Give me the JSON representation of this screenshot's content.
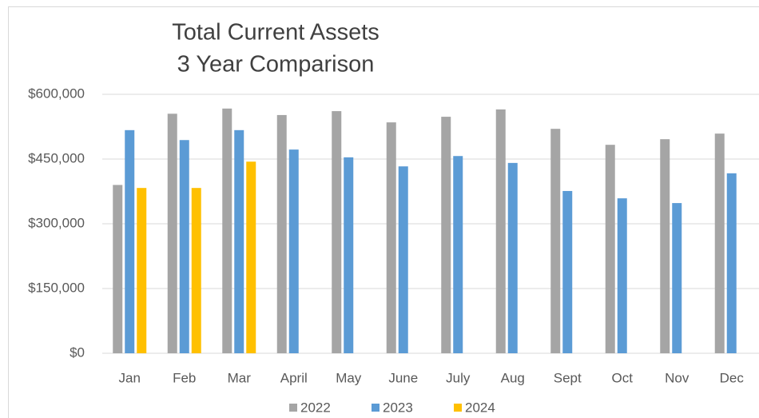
{
  "chart_data": {
    "type": "bar",
    "title": "Total Current Assets",
    "subtitle": "3 Year Comparison",
    "categories": [
      "Jan",
      "Feb",
      "Mar",
      "April",
      "May",
      "June",
      "July",
      "Aug",
      "Sept",
      "Oct",
      "Nov",
      "Dec"
    ],
    "series": [
      {
        "name": "2022",
        "color": "#a5a5a5",
        "values": [
          390000,
          555000,
          567000,
          552000,
          561000,
          535000,
          548000,
          565000,
          520000,
          483000,
          496000,
          509000
        ]
      },
      {
        "name": "2023",
        "color": "#5b9bd5",
        "values": [
          517000,
          494000,
          517000,
          472000,
          454000,
          433000,
          457000,
          441000,
          376000,
          359000,
          348000,
          417000
        ]
      },
      {
        "name": "2024",
        "color": "#ffc000",
        "values": [
          383000,
          383000,
          444000,
          null,
          null,
          null,
          null,
          null,
          null,
          null,
          null,
          null
        ]
      }
    ],
    "ylim": [
      0,
      600000
    ],
    "yticks": [
      {
        "value": 0,
        "label": "$0"
      },
      {
        "value": 150000,
        "label": "$150,000"
      },
      {
        "value": 300000,
        "label": "$300,000"
      },
      {
        "value": 450000,
        "label": "$450,000"
      },
      {
        "value": 600000,
        "label": "$600,000"
      }
    ],
    "grid": true,
    "legend": "bottom"
  }
}
